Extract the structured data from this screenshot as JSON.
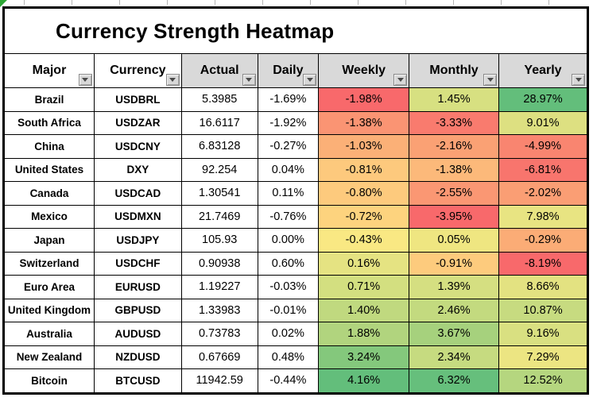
{
  "title_bar": {
    "title": "Currency Strength Heatmap"
  },
  "icons": {
    "filter_dropdown_icon": "▼",
    "selection_corner_marker": "green-triangle"
  },
  "colors": {
    "header_bg": "#D9D9D9",
    "grid_border": "#000000",
    "corner_marker_green": "#2EA836",
    "scale_min_red": "#F8696B",
    "scale_mid_yellow": "#FFEB84",
    "scale_max_green": "#63BE7B"
  },
  "chart_data": {
    "type": "heatmap",
    "title": "Currency Strength Heatmap",
    "legend": "none",
    "color_scale": {
      "min": "#F8696B",
      "mid": "#FFEB84",
      "max": "#63BE7B",
      "applied": "per column: Weekly, Monthly, Yearly"
    },
    "columns": [
      {
        "key": "major",
        "label": "Major",
        "shaded": false
      },
      {
        "key": "currency",
        "label": "Currency",
        "shaded": false
      },
      {
        "key": "actual",
        "label": "Actual",
        "shaded": true
      },
      {
        "key": "daily",
        "label": "Daily",
        "shaded": true
      },
      {
        "key": "weekly",
        "label": "Weekly",
        "shaded": true
      },
      {
        "key": "monthly",
        "label": "Monthly",
        "shaded": true
      },
      {
        "key": "yearly",
        "label": "Yearly",
        "shaded": true
      }
    ],
    "rows": [
      {
        "major": "Brazil",
        "currency": "USDBRL",
        "actual": 5.3985,
        "daily_pct": -1.69,
        "weekly_pct": -1.98,
        "monthly_pct": 1.45,
        "yearly_pct": 28.97,
        "cell_colors": {
          "weekly": "#F8696B",
          "monthly": "#D7E081",
          "yearly": "#63BE7B"
        }
      },
      {
        "major": "South Africa",
        "currency": "USDZAR",
        "actual": 16.6117,
        "daily_pct": -1.92,
        "weekly_pct": -1.38,
        "monthly_pct": -3.33,
        "yearly_pct": 9.01,
        "cell_colors": {
          "weekly": "#FA9473",
          "monthly": "#F97B6E",
          "yearly": "#DDE081"
        }
      },
      {
        "major": "China",
        "currency": "USDCNY",
        "actual": 6.83128,
        "daily_pct": -0.27,
        "weekly_pct": -1.03,
        "monthly_pct": -2.16,
        "yearly_pct": -4.99,
        "cell_colors": {
          "weekly": "#FBB077",
          "monthly": "#FAA174",
          "yearly": "#F98570"
        }
      },
      {
        "major": "United States",
        "currency": "DXY",
        "actual": 92.254,
        "daily_pct": 0.04,
        "weekly_pct": -0.81,
        "monthly_pct": -1.38,
        "yearly_pct": -6.81,
        "cell_colors": {
          "weekly": "#FDC97D",
          "monthly": "#FCB97A",
          "yearly": "#F8756D"
        }
      },
      {
        "major": "Canada",
        "currency": "USDCAD",
        "actual": 1.30541,
        "daily_pct": 0.11,
        "weekly_pct": -0.8,
        "monthly_pct": -2.55,
        "yearly_pct": -2.02,
        "cell_colors": {
          "weekly": "#FDCA7D",
          "monthly": "#FA9773",
          "yearly": "#FA9E74"
        }
      },
      {
        "major": "Mexico",
        "currency": "USDMXN",
        "actual": 21.7469,
        "daily_pct": -0.76,
        "weekly_pct": -0.72,
        "monthly_pct": -3.95,
        "yearly_pct": 7.98,
        "cell_colors": {
          "weekly": "#FDD37E",
          "monthly": "#F8696B",
          "yearly": "#E8E482"
        }
      },
      {
        "major": "Japan",
        "currency": "USDJPY",
        "actual": 105.93,
        "daily_pct": 0.0,
        "weekly_pct": -0.43,
        "monthly_pct": 0.05,
        "yearly_pct": -0.29,
        "cell_colors": {
          "weekly": "#F9E883",
          "monthly": "#EFE681",
          "yearly": "#FBAC76"
        }
      },
      {
        "major": "Switzerland",
        "currency": "USDCHF",
        "actual": 0.90938,
        "daily_pct": 0.6,
        "weekly_pct": 0.16,
        "monthly_pct": -0.91,
        "yearly_pct": -8.19,
        "cell_colors": {
          "weekly": "#E5E382",
          "monthly": "#FDCB7D",
          "yearly": "#F8696B"
        }
      },
      {
        "major": "Euro Area",
        "currency": "EURUSD",
        "actual": 1.19227,
        "daily_pct": -0.03,
        "weekly_pct": 0.71,
        "monthly_pct": 1.39,
        "yearly_pct": 8.66,
        "cell_colors": {
          "weekly": "#D3DF80",
          "monthly": "#D5DF81",
          "yearly": "#E3E281"
        }
      },
      {
        "major": "United Kingdom",
        "currency": "GBPUSD",
        "actual": 1.33983,
        "daily_pct": -0.01,
        "weekly_pct": 1.4,
        "monthly_pct": 2.46,
        "yearly_pct": 10.87,
        "cell_colors": {
          "weekly": "#C0D97F",
          "monthly": "#C3DA7F",
          "yearly": "#C7DB80"
        }
      },
      {
        "major": "Australia",
        "currency": "AUDUSD",
        "actual": 0.73783,
        "daily_pct": 0.02,
        "weekly_pct": 1.88,
        "monthly_pct": 3.67,
        "yearly_pct": 9.16,
        "cell_colors": {
          "weekly": "#B1D47E",
          "monthly": "#A6D17D",
          "yearly": "#D9E081"
        }
      },
      {
        "major": "New Zealand",
        "currency": "NZDUSD",
        "actual": 0.67669,
        "daily_pct": 0.48,
        "weekly_pct": 3.24,
        "monthly_pct": 2.34,
        "yearly_pct": 7.29,
        "cell_colors": {
          "weekly": "#84C87C",
          "monthly": "#C6DB80",
          "yearly": "#ECE582"
        }
      },
      {
        "major": "Bitcoin",
        "currency": "BTCUSD",
        "actual": 11942.59,
        "daily_pct": -0.44,
        "weekly_pct": 4.16,
        "monthly_pct": 6.32,
        "yearly_pct": 12.52,
        "cell_colors": {
          "weekly": "#63BE7B",
          "monthly": "#66BF7C",
          "yearly": "#B5D67F"
        }
      }
    ]
  }
}
